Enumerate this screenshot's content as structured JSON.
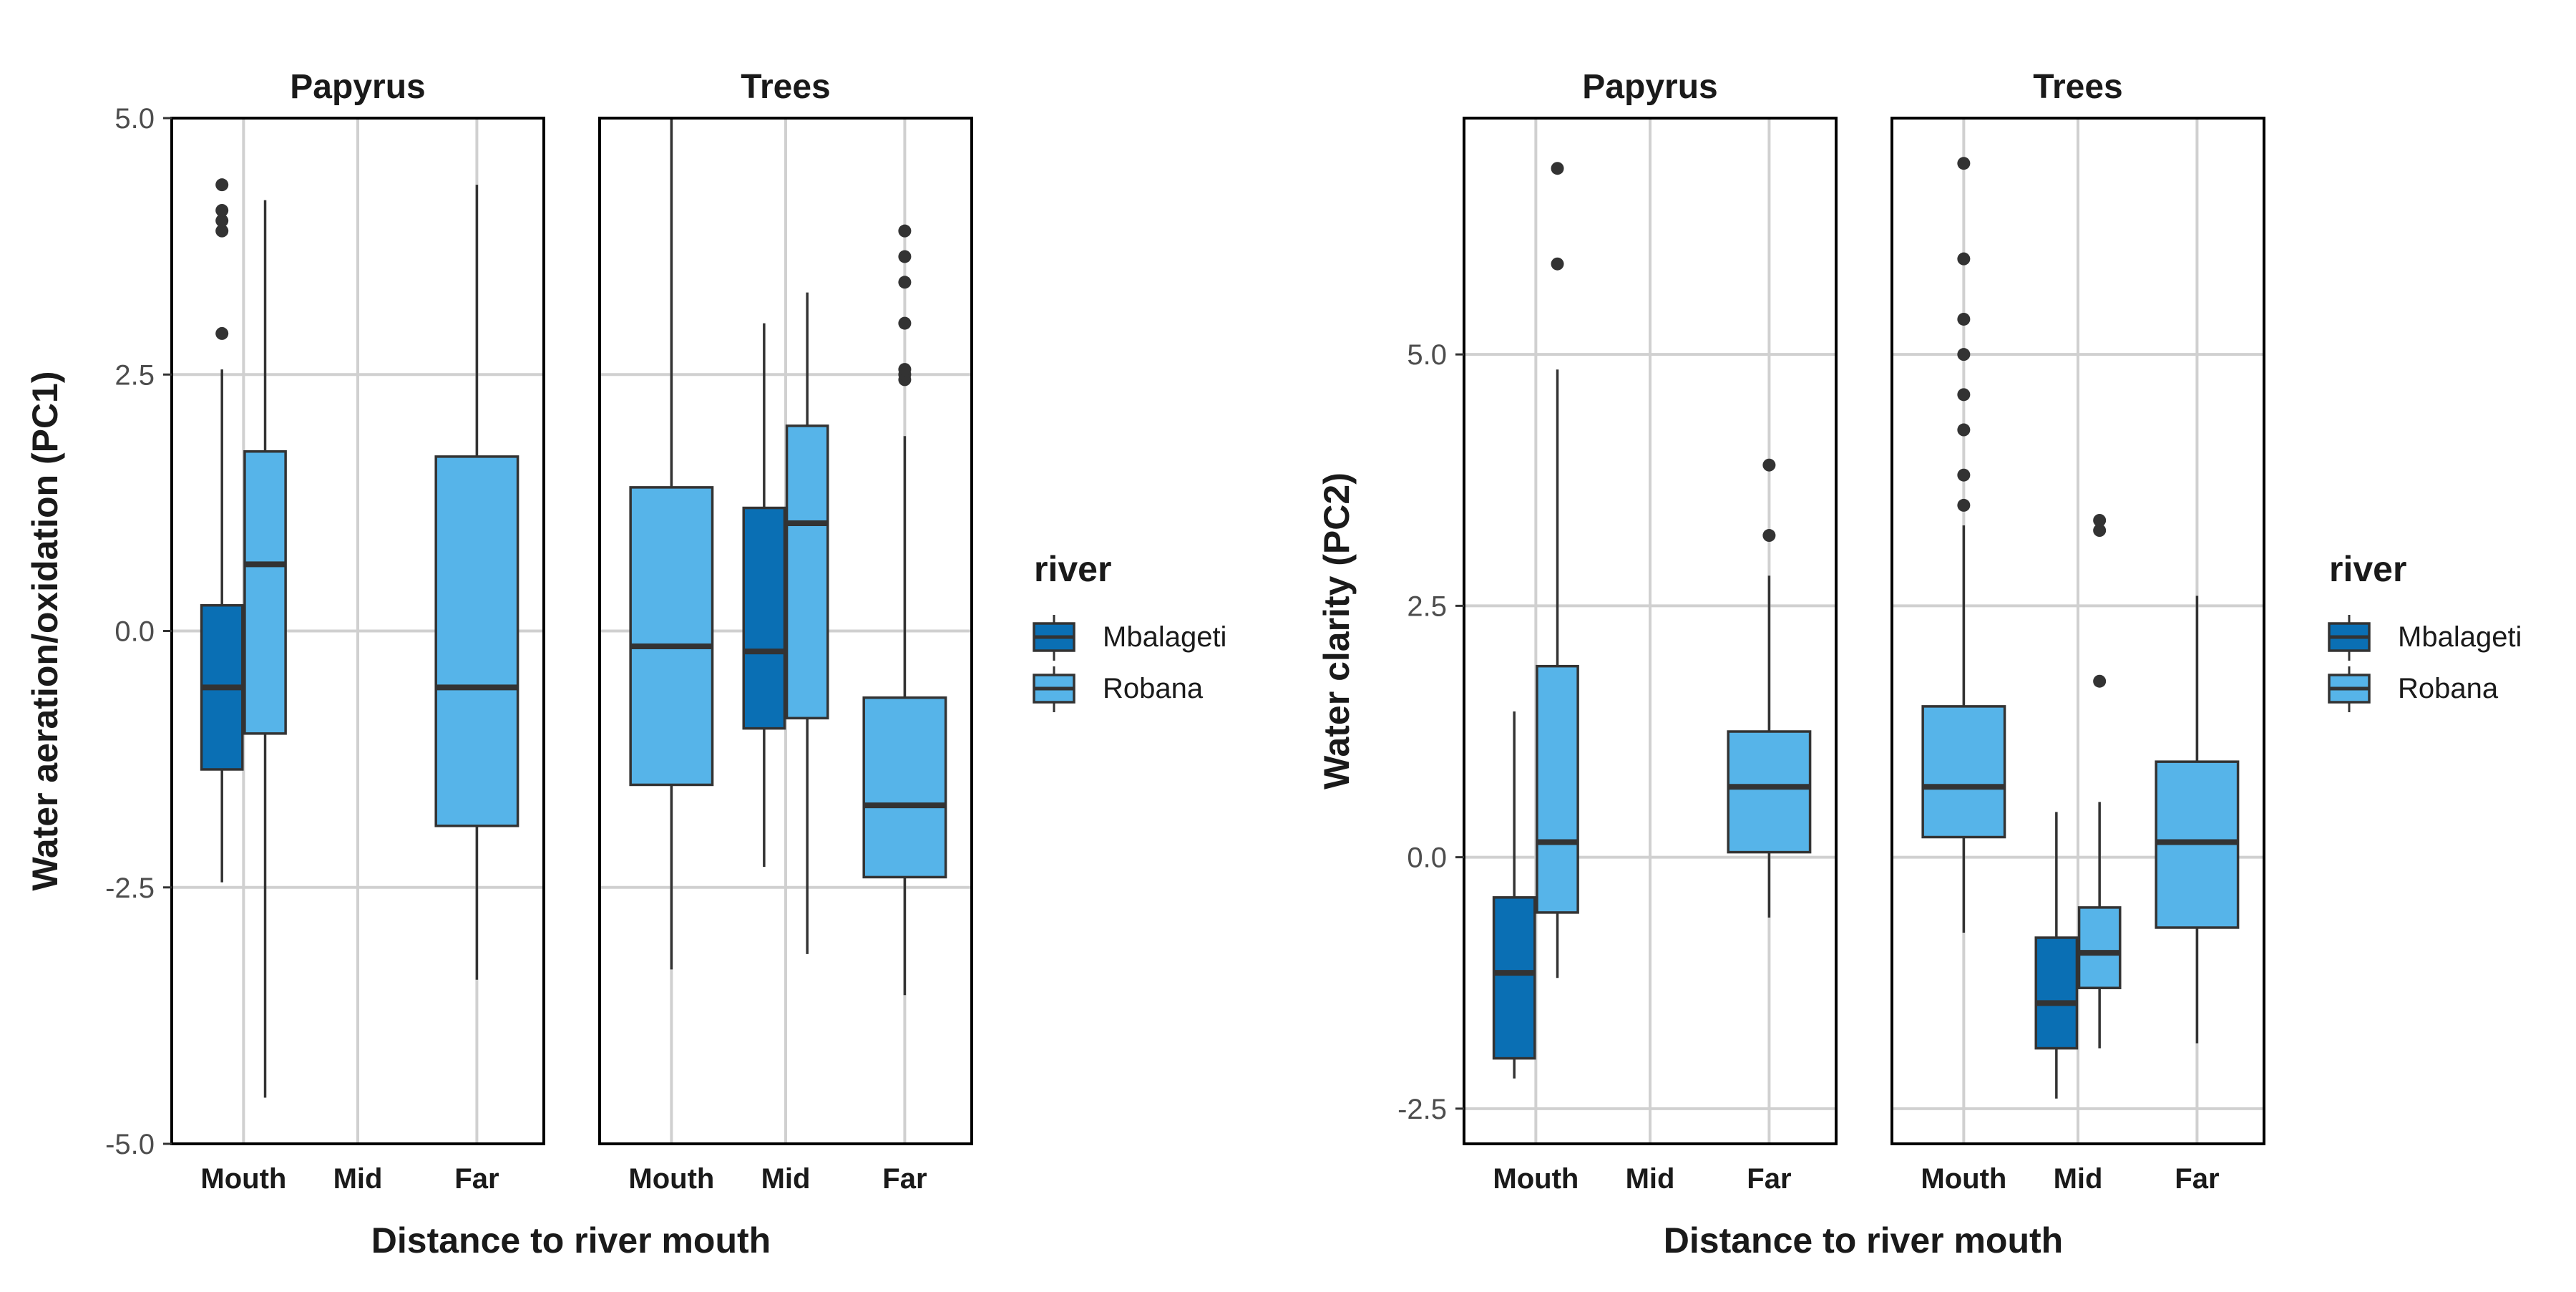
{
  "colors": {
    "Mbalageti": "#0a6fb4",
    "Robana": "#56b4e9",
    "grid": "#d0d0d0",
    "frame": "#000000",
    "stroke": "#333333"
  },
  "legend": {
    "title": "river",
    "items": [
      "Mbalageti",
      "Robana"
    ]
  },
  "chart_data": [
    {
      "type": "boxplot",
      "ylabel": "Water aeration/oxidation (PC1)",
      "xlabel": "Distance to river mouth",
      "categories": [
        "Mouth",
        "Mid",
        "Far"
      ],
      "ylim": [
        -5.0,
        5.0
      ],
      "yticks": [
        -5.0,
        -2.5,
        0.0,
        2.5,
        5.0
      ],
      "yticklabels": [
        "-5.0",
        "-2.5",
        "0.0",
        "2.5",
        "5.0"
      ],
      "legend": "right",
      "facets": [
        {
          "title": "Papyrus",
          "boxes": [
            {
              "category": "Mouth",
              "river": "Mbalageti",
              "slot": 0,
              "q1": -1.35,
              "median": -0.55,
              "q3": 0.25,
              "whisker_low": -2.45,
              "whisker_high": 2.55,
              "outliers": [
                2.9,
                3.9,
                4.0,
                4.1,
                4.35
              ]
            },
            {
              "category": "Mouth",
              "river": "Robana",
              "slot": 1,
              "q1": -1.0,
              "median": 0.65,
              "q3": 1.75,
              "whisker_low": -4.55,
              "whisker_high": 4.2,
              "outliers": []
            },
            {
              "category": "Far",
              "river": "Robana",
              "slot": null,
              "q1": -1.9,
              "median": -0.55,
              "q3": 1.7,
              "whisker_low": -3.4,
              "whisker_high": 4.35,
              "outliers": []
            }
          ]
        },
        {
          "title": "Trees",
          "boxes": [
            {
              "category": "Mouth",
              "river": "Robana",
              "slot": null,
              "q1": -1.5,
              "median": -0.15,
              "q3": 1.4,
              "whisker_low": -3.3,
              "whisker_high": 5.0,
              "outliers": []
            },
            {
              "category": "Mid",
              "river": "Mbalageti",
              "slot": 0,
              "q1": -0.95,
              "median": -0.2,
              "q3": 1.2,
              "whisker_low": -2.3,
              "whisker_high": 3.0,
              "outliers": []
            },
            {
              "category": "Mid",
              "river": "Robana",
              "slot": 1,
              "q1": -0.85,
              "median": 1.05,
              "q3": 2.0,
              "whisker_low": -3.15,
              "whisker_high": 3.3,
              "outliers": []
            },
            {
              "category": "Far",
              "river": "Robana",
              "slot": null,
              "q1": -2.4,
              "median": -1.7,
              "q3": -0.65,
              "whisker_low": -3.55,
              "whisker_high": 1.9,
              "outliers": [
                2.45,
                2.5,
                2.55,
                3.0,
                3.4,
                3.65,
                3.9
              ]
            }
          ]
        }
      ]
    },
    {
      "type": "boxplot",
      "ylabel": "Water clarity (PC2)",
      "xlabel": "Distance to river mouth",
      "categories": [
        "Mouth",
        "Mid",
        "Far"
      ],
      "ylim": [
        -2.85,
        7.35
      ],
      "yticks": [
        -2.5,
        0.0,
        2.5,
        5.0
      ],
      "yticklabels": [
        "-2.5",
        "0.0",
        "2.5",
        "5.0"
      ],
      "legend": "right",
      "facets": [
        {
          "title": "Papyrus",
          "boxes": [
            {
              "category": "Mouth",
              "river": "Mbalageti",
              "slot": 0,
              "q1": -2.0,
              "median": -1.15,
              "q3": -0.4,
              "whisker_low": -2.2,
              "whisker_high": 1.45,
              "outliers": []
            },
            {
              "category": "Mouth",
              "river": "Robana",
              "slot": 1,
              "q1": -0.55,
              "median": 0.15,
              "q3": 1.9,
              "whisker_low": -1.2,
              "whisker_high": 4.85,
              "outliers": [
                5.9,
                6.85
              ]
            },
            {
              "category": "Far",
              "river": "Robana",
              "slot": null,
              "q1": 0.05,
              "median": 0.7,
              "q3": 1.25,
              "whisker_low": -0.6,
              "whisker_high": 2.8,
              "outliers": [
                3.2,
                3.9
              ]
            }
          ]
        },
        {
          "title": "Trees",
          "boxes": [
            {
              "category": "Mouth",
              "river": "Robana",
              "slot": null,
              "q1": 0.2,
              "median": 0.7,
              "q3": 1.5,
              "whisker_low": -0.75,
              "whisker_high": 3.3,
              "outliers": [
                3.5,
                3.8,
                4.25,
                4.6,
                5.0,
                5.35,
                5.95,
                6.9
              ]
            },
            {
              "category": "Mid",
              "river": "Mbalageti",
              "slot": 0,
              "q1": -1.9,
              "median": -1.45,
              "q3": -0.8,
              "whisker_low": -2.4,
              "whisker_high": 0.45,
              "outliers": []
            },
            {
              "category": "Mid",
              "river": "Robana",
              "slot": 1,
              "q1": -1.3,
              "median": -0.95,
              "q3": -0.5,
              "whisker_low": -1.9,
              "whisker_high": 0.55,
              "outliers": [
                1.75,
                3.25,
                3.35
              ]
            },
            {
              "category": "Far",
              "river": "Robana",
              "slot": null,
              "q1": -0.7,
              "median": 0.15,
              "q3": 0.95,
              "whisker_low": -1.85,
              "whisker_high": 2.6,
              "outliers": []
            }
          ]
        }
      ]
    }
  ]
}
